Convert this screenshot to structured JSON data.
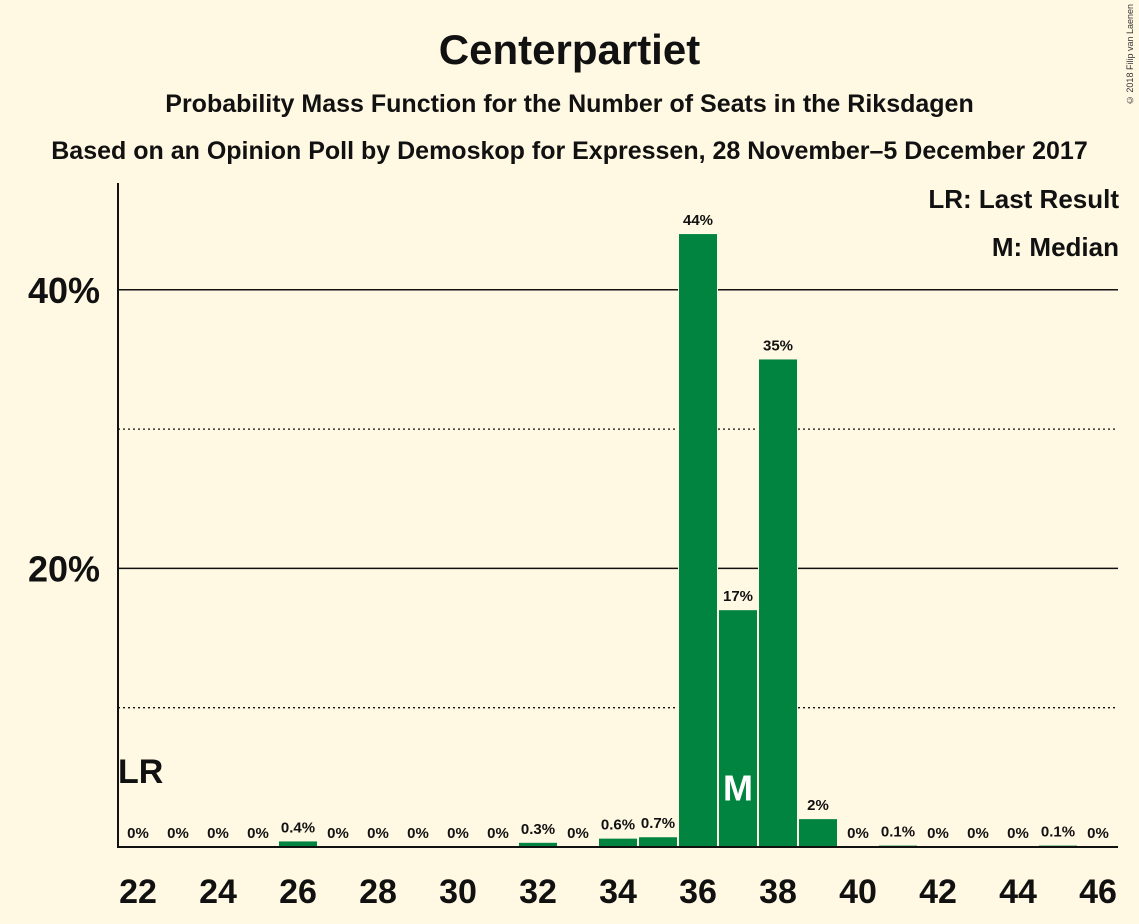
{
  "title": "Centerpartiet",
  "subtitle": "Probability Mass Function for the Number of Seats in the Riksdagen",
  "subtitle2": "Based on an Opinion Poll by Demoskop for Expressen, 28 November–5 December 2017",
  "copyright": "© 2018 Filip van Laenen",
  "legend": {
    "lr": "LR: Last Result",
    "m": "M: Median"
  },
  "colors": {
    "bar": "#00843f",
    "background": "#fff8e3"
  },
  "chart_data": {
    "type": "bar",
    "x": [
      22,
      23,
      24,
      25,
      26,
      27,
      28,
      29,
      30,
      31,
      32,
      33,
      34,
      35,
      36,
      37,
      38,
      39,
      40,
      41,
      42,
      43,
      44,
      45,
      46
    ],
    "values": [
      0,
      0,
      0,
      0,
      0.4,
      0,
      0,
      0,
      0,
      0,
      0.3,
      0,
      0.6,
      0.7,
      44,
      17,
      35,
      2,
      0,
      0.1,
      0,
      0,
      0,
      0.1,
      0
    ],
    "value_labels": [
      "0%",
      "0%",
      "0%",
      "0%",
      "0.4%",
      "0%",
      "0%",
      "0%",
      "0%",
      "0%",
      "0.3%",
      "0%",
      "0.6%",
      "0.7%",
      "44%",
      "17%",
      "35%",
      "2%",
      "0%",
      "0.1%",
      "0%",
      "0%",
      "0%",
      "0.1%",
      "0%"
    ],
    "x_tick_labels": [
      "22",
      "24",
      "26",
      "28",
      "30",
      "32",
      "34",
      "36",
      "38",
      "40",
      "42",
      "44",
      "46"
    ],
    "y_tick_labels": [
      "20%",
      "40%"
    ],
    "ylim": [
      0,
      48
    ],
    "last_result": {
      "seat": 22,
      "label": "LR"
    },
    "median": {
      "seat": 37,
      "label": "M"
    }
  }
}
